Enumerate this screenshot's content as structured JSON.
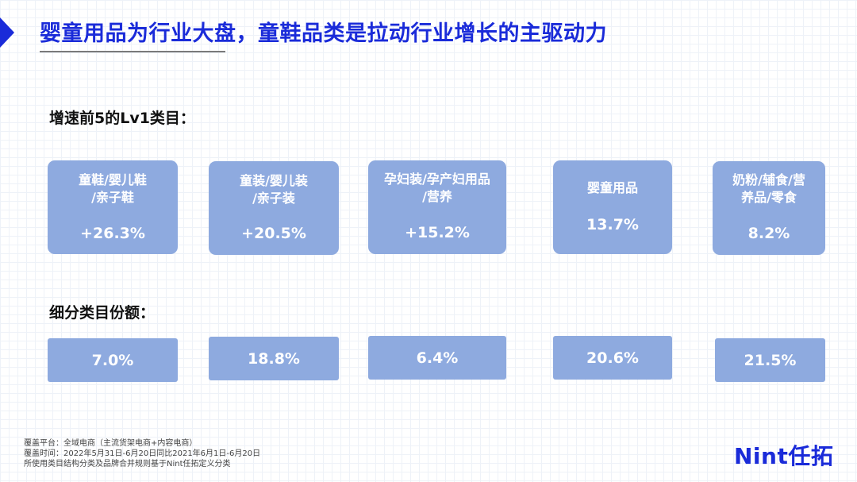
{
  "title": "婴童用品为行业大盘，童鞋品类是拉动行业增长的主驱动力",
  "sections": {
    "top5_label": "增速前5的Lv1类目：",
    "share_label": "细分类目份额："
  },
  "categories": [
    {
      "name_line1": "童鞋/婴儿鞋",
      "name_line2": "/亲子鞋",
      "growth": "+26.3%",
      "share": "7.0%"
    },
    {
      "name_line1": "童装/婴儿装",
      "name_line2": "/亲子装",
      "growth": "+20.5%",
      "share": "18.8%"
    },
    {
      "name_line1": "孕妇装/孕产妇用品",
      "name_line2": "/营养",
      "growth": "+15.2%",
      "share": "6.4%"
    },
    {
      "name_line1": "婴童用品",
      "name_line2": "",
      "growth": "13.7%",
      "share": "20.6%"
    },
    {
      "name_line1": "奶粉/辅食/营",
      "name_line2": "养品/零食",
      "growth": "8.2%",
      "share": "21.5%"
    }
  ],
  "footer": {
    "line1": "覆盖平台：全域电商（主流货架电商+内容电商）",
    "line2": "覆盖时间：2022年5月31日-6月20日同比2021年6月1日-6月20日",
    "line3": "所使用类目结构分类及品牌合并规则基于Nint任拓定义分类"
  },
  "logo": "Nint任拓",
  "colors": {
    "accent": "#1a2bd9",
    "card": "#8eaadf",
    "card_text": "#ffffff"
  }
}
